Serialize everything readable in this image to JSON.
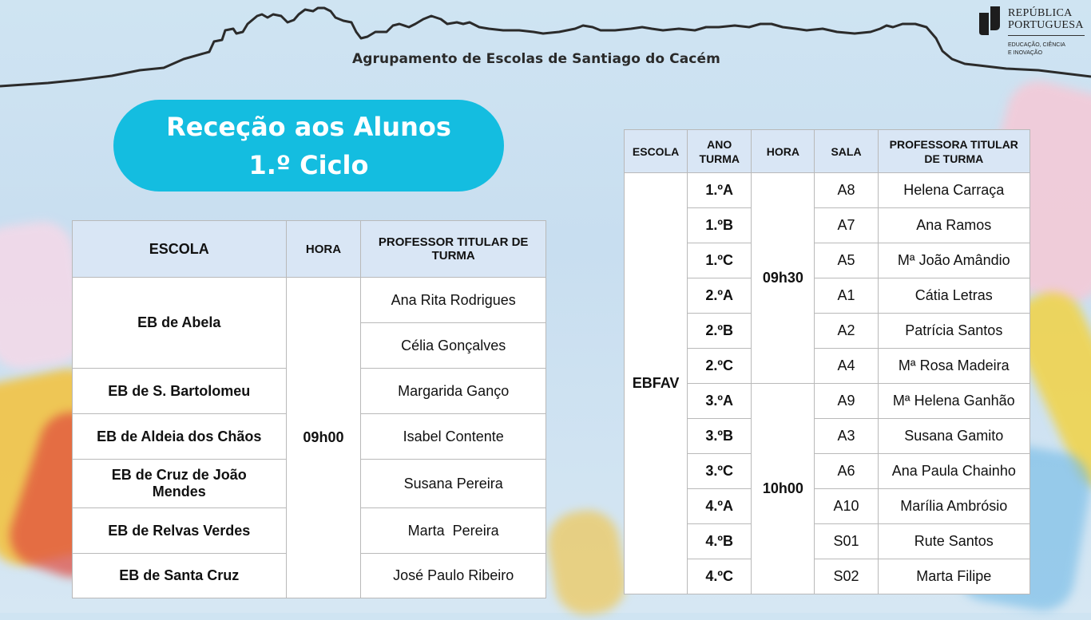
{
  "header": {
    "school_name": "Agrupamento de Escolas de Santiago do Cacém",
    "gov_line1": "REPÚBLICA",
    "gov_line2": "PORTUGUESA",
    "gov_line3": "EDUCAÇÃO, CIÊNCIA",
    "gov_line4": "E INOVAÇÃO"
  },
  "title": {
    "line1": "Receção aos Alunos",
    "line2": "1.º Ciclo"
  },
  "table_left": {
    "headers": [
      "ESCOLA",
      "HORA",
      "PROFESSOR TITULAR DE TURMA"
    ],
    "hora": "09h00",
    "schools": [
      {
        "name": "EB de Abela",
        "teachers": [
          "Ana Rita Rodrigues",
          "Célia Gonçalves"
        ]
      },
      {
        "name": "EB de S. Bartolomeu",
        "teachers": [
          "Margarida Ganço"
        ]
      },
      {
        "name": "EB de Aldeia dos Chãos",
        "teachers": [
          "Isabel Contente"
        ]
      },
      {
        "name": "EB de Cruz de João Mendes",
        "teachers": [
          "Susana Pereira"
        ]
      },
      {
        "name": "EB de Relvas Verdes",
        "teachers": [
          "Marta  Pereira"
        ]
      },
      {
        "name": "EB de Santa Cruz",
        "teachers": [
          "José Paulo Ribeiro"
        ]
      }
    ]
  },
  "table_right": {
    "headers": [
      "ESCOLA",
      "ANO TURMA",
      "HORA",
      "SALA",
      "PROFESSORA TITULAR DE TURMA"
    ],
    "school": "EBFAV",
    "hora_groups": [
      "09h30",
      "10h00"
    ],
    "rows": [
      {
        "turma": "1.ºA",
        "sala": "A8",
        "prof": "Helena Carraça"
      },
      {
        "turma": "1.ºB",
        "sala": "A7",
        "prof": "Ana Ramos"
      },
      {
        "turma": "1.ºC",
        "sala": "A5",
        "prof": "Mª João Amândio"
      },
      {
        "turma": "2.ºA",
        "sala": "A1",
        "prof": "Cátia Letras"
      },
      {
        "turma": "2.ºB",
        "sala": "A2",
        "prof": "Patrícia Santos"
      },
      {
        "turma": "2.ºC",
        "sala": "A4",
        "prof": "Mª Rosa Madeira"
      },
      {
        "turma": "3.ºA",
        "sala": "A9",
        "prof": "Mª Helena Ganhão"
      },
      {
        "turma": "3.ºB",
        "sala": "A3",
        "prof": "Susana Gamito"
      },
      {
        "turma": "3.ºC",
        "sala": "A6",
        "prof": "Ana Paula Chainho"
      },
      {
        "turma": "4.ºA",
        "sala": "A10",
        "prof": "Marília Ambrósio"
      },
      {
        "turma": "4.ºB",
        "sala": "S01",
        "prof": "Rute Santos"
      },
      {
        "turma": "4.ºC",
        "sala": "S02",
        "prof": "Marta Filipe"
      }
    ]
  },
  "colors": {
    "pill": "#14bde0",
    "header_cell": "#d9e6f5",
    "background": "#cfe4f2"
  }
}
